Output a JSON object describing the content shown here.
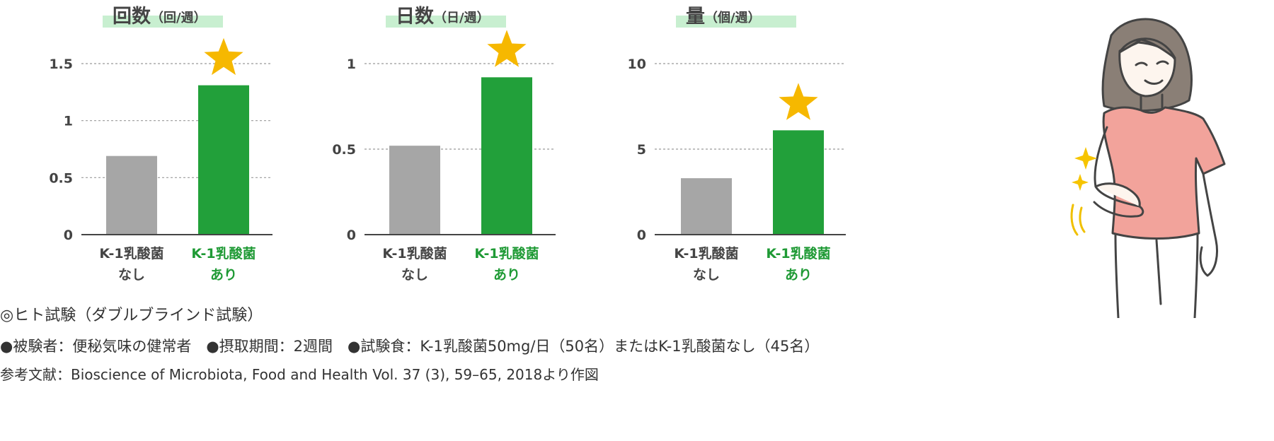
{
  "chart_data": [
    {
      "type": "bar",
      "title": "回数",
      "unit": "（回/週）",
      "categories": [
        [
          "K-1乳酸菌",
          "なし"
        ],
        [
          "K-1乳酸菌",
          "あり"
        ]
      ],
      "values": [
        0.69,
        1.31
      ],
      "yticks": [
        "0",
        "0.5",
        "1",
        "1.5"
      ],
      "ylim": [
        0,
        1.5
      ],
      "grid": "dotted",
      "colors": [
        "#a6a6a6",
        "#22a03a"
      ],
      "highlight": "star"
    },
    {
      "type": "bar",
      "title": "日数",
      "unit": "（日/週）",
      "categories": [
        [
          "K-1乳酸菌",
          "なし"
        ],
        [
          "K-1乳酸菌",
          "あり"
        ]
      ],
      "values": [
        0.52,
        0.92
      ],
      "yticks": [
        "0",
        "0.5",
        "1"
      ],
      "ylim": [
        0,
        1
      ],
      "grid": "dotted",
      "colors": [
        "#a6a6a6",
        "#22a03a"
      ],
      "highlight": "star"
    },
    {
      "type": "bar",
      "title": "量",
      "unit": "（個/週）",
      "categories": [
        [
          "K-1乳酸菌",
          "なし"
        ],
        [
          "K-1乳酸菌",
          "あり"
        ]
      ],
      "values": [
        3.3,
        6.1
      ],
      "yticks": [
        "0",
        "5",
        "10"
      ],
      "ylim": [
        0,
        10
      ],
      "grid": "dotted",
      "colors": [
        "#a6a6a6",
        "#22a03a"
      ],
      "highlight": "star"
    }
  ],
  "colors": {
    "title_band": "#c8efd0",
    "gray_bar": "#a6a6a6",
    "green_bar": "#22a03a",
    "green_label": "#1f9a35",
    "star": "#f6b800",
    "axis": "#444444",
    "grid": "#999999"
  },
  "notes": {
    "test": "◎ヒト試験（ダブルブラインド試験）",
    "conditions": "●被験者：便秘気味の健常者　●摂取期間：2週間　●試験食：K-1乳酸菌50mg/日（50名）またはK-1乳酸菌なし（45名）",
    "reference": "参考文献：Bioscience of Microbiota, Food and Health Vol. 37 (3), 59–65, 2018より作図"
  },
  "illustration": {
    "icon": "woman-holding-stomach-icon",
    "sparkle_icon": "sparkle-icon"
  }
}
